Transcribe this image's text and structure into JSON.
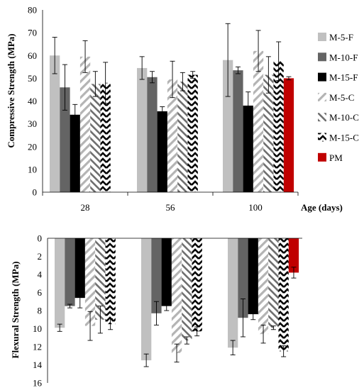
{
  "chart_data": [
    {
      "type": "bar",
      "ylabel": "Compressive Strength (MPa)",
      "xlabel": "Age (days)",
      "ylim": [
        0,
        80
      ],
      "yticks": [
        0,
        10,
        20,
        30,
        40,
        50,
        60,
        70,
        80
      ],
      "categories": [
        "28",
        "56",
        "100"
      ],
      "grid": false,
      "legend_position": "right",
      "series": [
        {
          "name": "M-5-F",
          "pattern": "solid-lightgray",
          "values": [
            60,
            54.5,
            58
          ],
          "errors": [
            8,
            5,
            16
          ]
        },
        {
          "name": "M-10-F",
          "pattern": "solid-darkgray",
          "values": [
            46,
            50.5,
            53.5
          ],
          "errors": [
            10,
            2.5,
            1.5
          ]
        },
        {
          "name": "M-15-F",
          "pattern": "solid-black",
          "values": [
            34,
            35.5,
            38
          ],
          "errors": [
            4.5,
            2,
            6
          ]
        },
        {
          "name": "M-5-C",
          "pattern": "hatch-light",
          "values": [
            59.5,
            49.5,
            62
          ],
          "errors": [
            7,
            8,
            9
          ]
        },
        {
          "name": "M-10-C",
          "pattern": "hatch-back",
          "values": [
            47.5,
            48.5,
            51.5
          ],
          "errors": [
            5.5,
            4,
            8
          ]
        },
        {
          "name": "M-15-C",
          "pattern": "chevron",
          "values": [
            48,
            51.5,
            57.5
          ],
          "errors": [
            9,
            1.5,
            8.5
          ]
        },
        {
          "name": "PM",
          "pattern": "solid-red",
          "values": [
            null,
            null,
            50
          ],
          "errors": [
            0,
            0,
            0.7
          ]
        }
      ]
    },
    {
      "type": "bar",
      "ylabel": "Flexural Strength (MPa)",
      "ylim": [
        0,
        16
      ],
      "yticks": [
        0,
        2,
        4,
        6,
        8,
        10,
        12,
        14,
        16
      ],
      "y_inverted": true,
      "categories": [
        "28",
        "56",
        "100"
      ],
      "series": [
        {
          "name": "M-5-F",
          "values": [
            9.9,
            13.5,
            12.1
          ],
          "errors": [
            0.4,
            0.7,
            0.8
          ]
        },
        {
          "name": "M-10-F",
          "values": [
            7.5,
            8.3,
            8.8
          ],
          "errors": [
            0.2,
            1.3,
            2.1
          ]
        },
        {
          "name": "M-15-F",
          "values": [
            6.6,
            7.5,
            8.4
          ],
          "errors": [
            1.1,
            0.5,
            0.6
          ]
        },
        {
          "name": "M-5-C",
          "values": [
            9.7,
            12.7,
            10.6
          ],
          "errors": [
            1.6,
            1.0,
            1.0
          ]
        },
        {
          "name": "M-10-C",
          "values": [
            9.0,
            11.3,
            9.9
          ],
          "errors": [
            1.5,
            0.4,
            0.2
          ]
        },
        {
          "name": "M-15-C",
          "values": [
            9.5,
            10.3,
            12.5
          ],
          "errors": [
            0.6,
            0.5,
            0.6
          ]
        },
        {
          "name": "PM",
          "values": [
            null,
            null,
            3.8
          ],
          "errors": [
            0,
            0,
            0.6
          ]
        }
      ]
    }
  ],
  "colors": {
    "light_gray": "#c0c0c0",
    "dark_gray": "#646464",
    "black": "#000000",
    "red": "#c00000"
  }
}
